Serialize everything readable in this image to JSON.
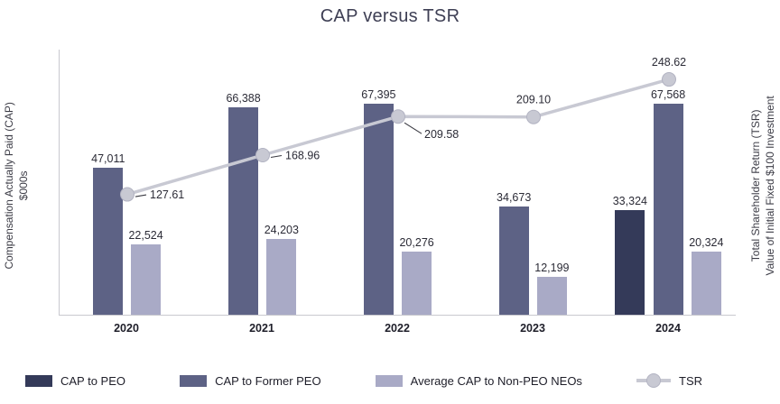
{
  "chart_data": {
    "type": "bar",
    "subtype": "grouped-bar-with-line-overlay",
    "title": "CAP versus TSR",
    "categories": [
      "2020",
      "2021",
      "2022",
      "2023",
      "2024"
    ],
    "left_axis": {
      "label_line1": "Compensation Actually Paid (CAP)",
      "label_line2": "$000s",
      "min": 0,
      "max": 85000
    },
    "right_axis": {
      "label_line1": "Total Shareholder Return (TSR)",
      "label_line2": "Value of Initial Fixed $100 Investment",
      "min": 0,
      "max": 280
    },
    "bar_series": [
      {
        "name": "CAP to PEO",
        "color": "#343a59",
        "values": [
          null,
          null,
          null,
          null,
          33324
        ]
      },
      {
        "name": "CAP to Former PEO",
        "color": "#5d6285",
        "values": [
          47011,
          66388,
          67395,
          34673,
          67568
        ]
      },
      {
        "name": "Average CAP to Non-PEO NEOs",
        "color": "#a9aac6",
        "values": [
          22524,
          24203,
          20276,
          12199,
          20324
        ]
      }
    ],
    "line_series": {
      "name": "TSR",
      "color": "#c8c9d3",
      "values": [
        127.61,
        168.96,
        209.58,
        209.1,
        248.62
      ],
      "label_positions": [
        "right",
        "right",
        "below-right",
        "above",
        "above"
      ]
    },
    "legend": [
      {
        "label": "CAP to PEO",
        "color": "#343a59",
        "marker": "rect"
      },
      {
        "label": "CAP to Former PEO",
        "color": "#5d6285",
        "marker": "rect"
      },
      {
        "label": "Average CAP to Non-PEO NEOs",
        "color": "#a9aac6",
        "marker": "rect"
      },
      {
        "label": "TSR",
        "color": "#c8c9d3",
        "marker": "line-circle"
      }
    ],
    "grid": false,
    "legend_position": "bottom",
    "data_labels": true
  }
}
